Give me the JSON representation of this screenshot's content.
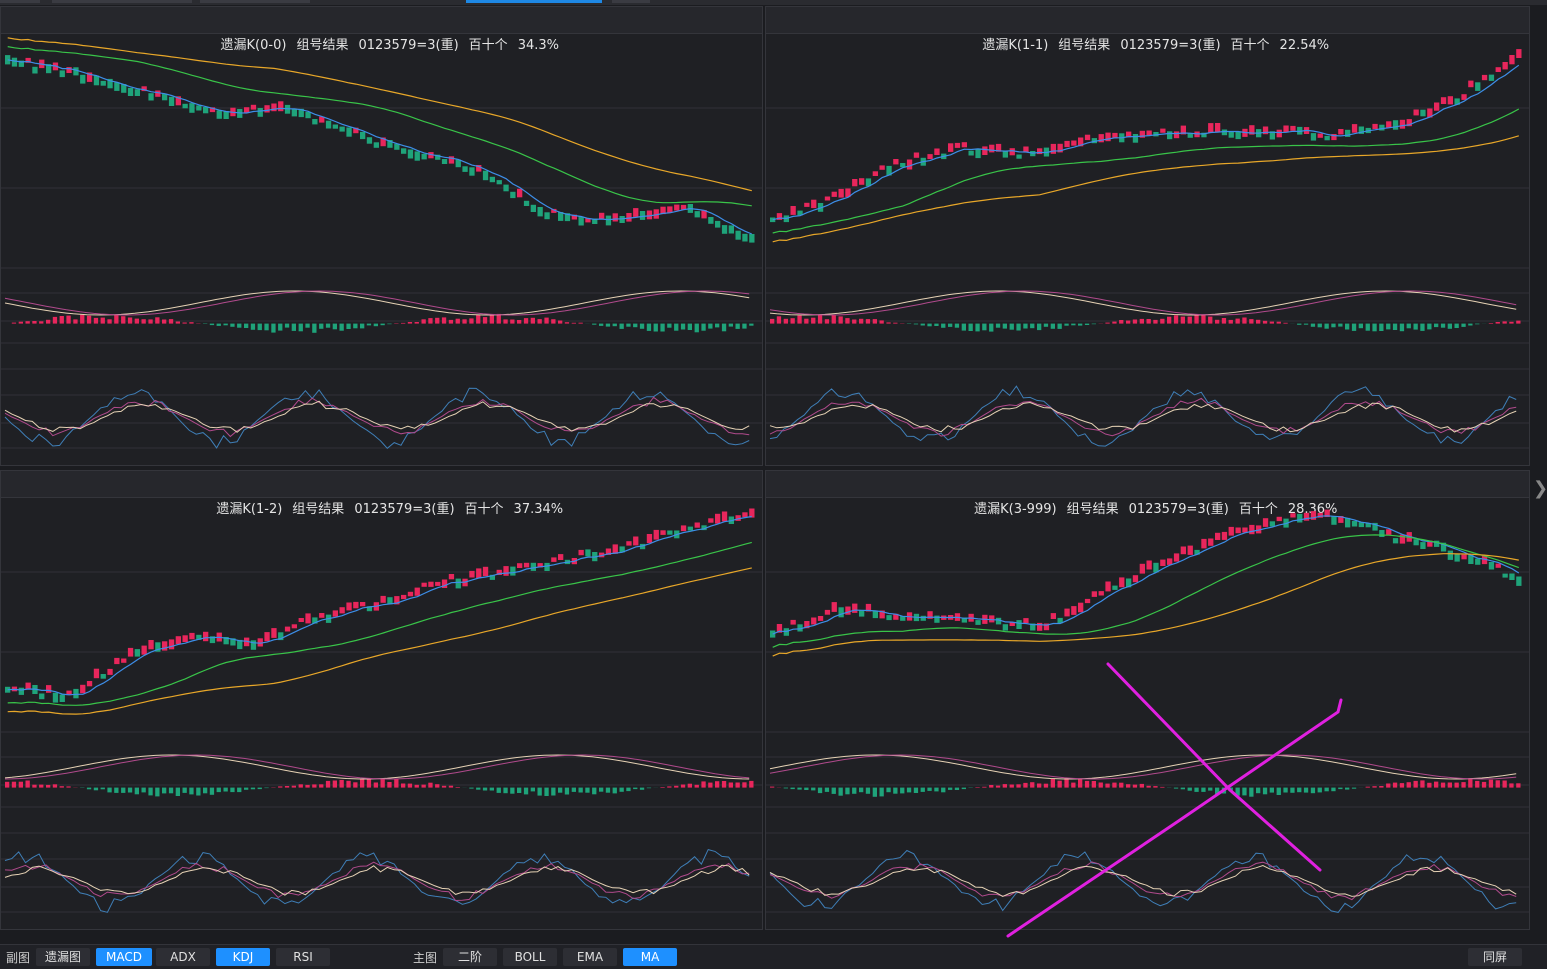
{
  "panels": [
    {
      "name": "遗漏K(0-0)",
      "combo": "组号结果",
      "formula": "0123579=3(重)",
      "digits": "百十个",
      "percent": "34.3%"
    },
    {
      "name": "遗漏K(1-1)",
      "combo": "组号结果",
      "formula": "0123579=3(重)",
      "digits": "百十个",
      "percent": "22.54%"
    },
    {
      "name": "遗漏K(1-2)",
      "combo": "组号结果",
      "formula": "0123579=3(重)",
      "digits": "百十个",
      "percent": "37.34%"
    },
    {
      "name": "遗漏K(3-999)",
      "combo": "组号结果",
      "formula": "0123579=3(重)",
      "digits": "百十个",
      "percent": "28.36%"
    }
  ],
  "bottombar": {
    "sub_label": "副图",
    "sub_buttons": [
      {
        "label": "遗漏图",
        "active": false
      },
      {
        "label": "MACD",
        "active": true
      },
      {
        "label": "ADX",
        "active": false
      },
      {
        "label": "KDJ",
        "active": true
      },
      {
        "label": "RSI",
        "active": false
      }
    ],
    "main_label": "主图",
    "main_buttons": [
      {
        "label": "二阶",
        "active": false
      },
      {
        "label": "BOLL",
        "active": false
      },
      {
        "label": "EMA",
        "active": false
      },
      {
        "label": "MA",
        "active": true
      }
    ],
    "same_screen": "同屏"
  },
  "colors": {
    "up": "#e8265c",
    "down": "#1fa37a",
    "ma_short": "#3d8ee8",
    "ma_mid": "#39c449",
    "ma_long": "#e8a729",
    "line_a": "#e6d2b5",
    "line_b": "#b04a8c",
    "kdj_j": "#3f7fb8",
    "annotation": "#e020e0"
  },
  "icons": {
    "expand": "chevron-right-icon"
  }
}
